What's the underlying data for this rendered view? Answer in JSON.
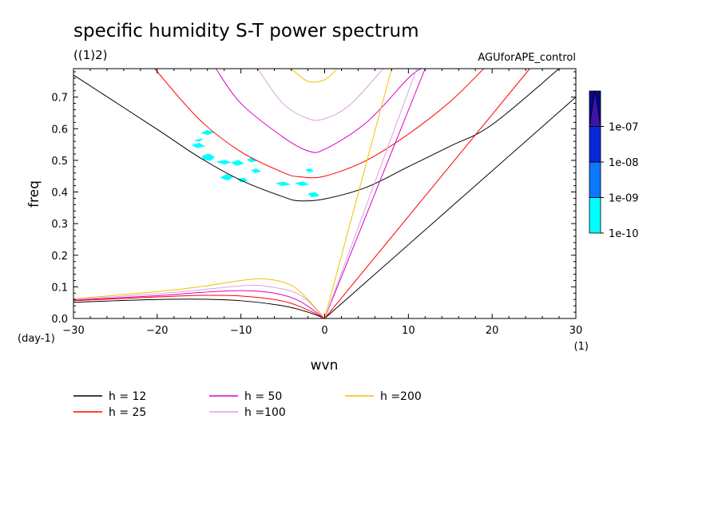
{
  "chart_data": {
    "type": "line",
    "title": "specific humidity S-T power spectrum",
    "subtitle": "((1)2)",
    "dataset_label": "AGUforAPE_control",
    "xlabel": "wvn",
    "ylabel": "freq",
    "x_unit": "(1)",
    "y_unit": "(day-1)",
    "xlim": [
      -30,
      30
    ],
    "ylim": [
      0,
      0.79
    ],
    "x_ticks": [
      -30,
      -20,
      -10,
      0,
      10,
      20,
      30
    ],
    "x_tick_labels": [
      "−30",
      "−20",
      "−10",
      "0",
      "10",
      "20",
      "30"
    ],
    "y_ticks": [
      0,
      0.1,
      0.2,
      0.3,
      0.4,
      0.5,
      0.6,
      0.7
    ],
    "y_tick_labels": [
      "0.0",
      "0.1",
      "0.2",
      "0.3",
      "0.4",
      "0.5",
      "0.6",
      "0.7"
    ],
    "series": [
      {
        "name": "h = 12",
        "h": 12,
        "color": "#000000",
        "kelvin": [
          [
            0,
            0
          ],
          [
            30,
            0.7
          ]
        ],
        "ig": [
          [
            -30,
            0.77
          ],
          [
            -20,
            0.598
          ],
          [
            -15,
            0.51
          ],
          [
            -10,
            0.437
          ],
          [
            -5,
            0.385
          ],
          [
            -3,
            0.372
          ],
          [
            0,
            0.378
          ],
          [
            5,
            0.415
          ],
          [
            10,
            0.48
          ],
          [
            15,
            0.545
          ],
          [
            20,
            0.613
          ],
          [
            28,
            0.79
          ]
        ],
        "rossby": [
          [
            -30,
            0.051
          ],
          [
            -25,
            0.056
          ],
          [
            -20,
            0.06
          ],
          [
            -15,
            0.061
          ],
          [
            -10,
            0.056
          ],
          [
            -5,
            0.04
          ],
          [
            -2,
            0.02
          ],
          [
            0,
            0
          ]
        ]
      },
      {
        "name": "h = 25",
        "h": 25,
        "color": "#ff0000",
        "kelvin": [
          [
            0,
            0
          ],
          [
            24.5,
            0.79
          ]
        ],
        "ig": [
          [
            -20.3,
            0.79
          ],
          [
            -15,
            0.63
          ],
          [
            -10,
            0.527
          ],
          [
            -5,
            0.462
          ],
          [
            -3,
            0.448
          ],
          [
            0,
            0.45
          ],
          [
            5,
            0.5
          ],
          [
            10,
            0.583
          ],
          [
            15,
            0.686
          ],
          [
            19,
            0.79
          ]
        ],
        "rossby": [
          [
            -30,
            0.056
          ],
          [
            -20,
            0.068
          ],
          [
            -15,
            0.073
          ],
          [
            -10,
            0.071
          ],
          [
            -5,
            0.055
          ],
          [
            -2,
            0.027
          ],
          [
            0,
            0
          ]
        ]
      },
      {
        "name": "h = 50",
        "h": 50,
        "color": "#dd00cc",
        "kelvin": [
          [
            0,
            0
          ],
          [
            12,
            0.79
          ]
        ],
        "ig": [
          [
            -13,
            0.79
          ],
          [
            -10,
            0.68
          ],
          [
            -5,
            0.574
          ],
          [
            -2,
            0.53
          ],
          [
            0,
            0.535
          ],
          [
            5,
            0.62
          ],
          [
            10,
            0.76
          ],
          [
            11.5,
            0.79
          ]
        ],
        "rossby": [
          [
            -30,
            0.058
          ],
          [
            -20,
            0.072
          ],
          [
            -15,
            0.082
          ],
          [
            -10,
            0.088
          ],
          [
            -6,
            0.08
          ],
          [
            -3,
            0.055
          ],
          [
            0,
            0
          ]
        ]
      },
      {
        "name": "h =100",
        "h": 100,
        "color": "#dda0dd",
        "kelvin": [
          [
            0,
            0
          ],
          [
            11,
            0.79
          ]
        ],
        "ig": [
          [
            -8,
            0.79
          ],
          [
            -5,
            0.68
          ],
          [
            -2,
            0.632
          ],
          [
            0,
            0.632
          ],
          [
            3,
            0.675
          ],
          [
            7,
            0.79
          ]
        ],
        "rossby": [
          [
            -30,
            0.06
          ],
          [
            -20,
            0.078
          ],
          [
            -15,
            0.09
          ],
          [
            -10,
            0.103
          ],
          [
            -7,
            0.102
          ],
          [
            -3,
            0.075
          ],
          [
            0,
            0
          ]
        ]
      },
      {
        "name": "h =200",
        "h": 200,
        "color": "#f2c000",
        "kelvin": [
          [
            0,
            0
          ],
          [
            8,
            0.79
          ]
        ],
        "ig": [
          [
            -4,
            0.79
          ],
          [
            -2,
            0.75
          ],
          [
            0,
            0.755
          ],
          [
            1.5,
            0.79
          ]
        ],
        "rossby": [
          [
            -30,
            0.062
          ],
          [
            -20,
            0.085
          ],
          [
            -15,
            0.1
          ],
          [
            -10,
            0.12
          ],
          [
            -7,
            0.125
          ],
          [
            -4,
            0.105
          ],
          [
            -2,
            0.06
          ],
          [
            0,
            0
          ]
        ]
      }
    ],
    "spectrum_regions": [
      {
        "level": "1e-10",
        "color": "#00ffff",
        "points": [
          [
            -14.7,
            0.586
          ],
          [
            -14,
            0.595
          ],
          [
            -13.3,
            0.588
          ],
          [
            -14,
            0.582
          ]
        ]
      },
      {
        "level": "1e-10",
        "color": "#00ffff",
        "points": [
          [
            -15.5,
            0.563
          ],
          [
            -14.6,
            0.568
          ],
          [
            -15,
            0.56
          ]
        ]
      },
      {
        "level": "1e-10",
        "color": "#00ffff",
        "points": [
          [
            -15.8,
            0.548
          ],
          [
            -15,
            0.554
          ],
          [
            -14.4,
            0.545
          ],
          [
            -15.2,
            0.54
          ]
        ]
      },
      {
        "level": "1e-10",
        "color": "#00ffff",
        "points": [
          [
            -14.6,
            0.513
          ],
          [
            -13.8,
            0.52
          ],
          [
            -13.2,
            0.51
          ],
          [
            -13.6,
            0.5
          ],
          [
            -14.5,
            0.503
          ]
        ]
      },
      {
        "level": "1e-10",
        "color": "#00ffff",
        "points": [
          [
            -12.8,
            0.495
          ],
          [
            -11.9,
            0.5
          ],
          [
            -11.3,
            0.493
          ],
          [
            -12,
            0.488
          ]
        ]
      },
      {
        "level": "1e-10",
        "color": "#00ffff",
        "points": [
          [
            -11.1,
            0.493
          ],
          [
            -10.3,
            0.5
          ],
          [
            -9.7,
            0.49
          ],
          [
            -10.5,
            0.484
          ]
        ]
      },
      {
        "level": "1e-10",
        "color": "#00ffff",
        "points": [
          [
            -9.2,
            0.502
          ],
          [
            -8.6,
            0.508
          ],
          [
            -8.2,
            0.499
          ],
          [
            -8.8,
            0.495
          ]
        ]
      },
      {
        "level": "1e-10",
        "color": "#00ffff",
        "points": [
          [
            -12.4,
            0.446
          ],
          [
            -11.7,
            0.455
          ],
          [
            -11,
            0.447
          ],
          [
            -11.6,
            0.437
          ]
        ]
      },
      {
        "level": "1e-10",
        "color": "#00ffff",
        "points": [
          [
            -10.3,
            0.44
          ],
          [
            -9.6,
            0.444
          ],
          [
            -9.3,
            0.436
          ],
          [
            -10,
            0.432
          ]
        ]
      },
      {
        "level": "1e-10",
        "color": "#00ffff",
        "points": [
          [
            -8.7,
            0.468
          ],
          [
            -8.2,
            0.473
          ],
          [
            -7.7,
            0.465
          ],
          [
            -8.3,
            0.461
          ]
        ]
      },
      {
        "level": "1e-10",
        "color": "#00ffff",
        "points": [
          [
            -5.7,
            0.428
          ],
          [
            -4.8,
            0.431
          ],
          [
            -4.2,
            0.424
          ],
          [
            -5.1,
            0.42
          ]
        ]
      },
      {
        "level": "1e-10",
        "color": "#00ffff",
        "points": [
          [
            -3.4,
            0.428
          ],
          [
            -2.6,
            0.432
          ],
          [
            -2,
            0.424
          ],
          [
            -2.8,
            0.42
          ]
        ]
      },
      {
        "level": "1e-10",
        "color": "#00ffff",
        "points": [
          [
            -1.9,
            0.395
          ],
          [
            -1.1,
            0.398
          ],
          [
            -0.7,
            0.388
          ],
          [
            -1.6,
            0.385
          ]
        ]
      },
      {
        "level": "1e-10",
        "color": "#00ffff",
        "points": [
          [
            -2.2,
            0.47
          ],
          [
            -1.7,
            0.473
          ],
          [
            -1.4,
            0.466
          ],
          [
            -1.9,
            0.464
          ]
        ]
      }
    ],
    "colorbar": {
      "levels": [
        "1e-10",
        "1e-09",
        "1e-08",
        "1e-07"
      ],
      "colors": [
        "#00ffff",
        "#0a78ff",
        "#0a28d8",
        "#08088c",
        "#3a16a8"
      ]
    },
    "legend": {
      "placement": "bottom"
    }
  }
}
